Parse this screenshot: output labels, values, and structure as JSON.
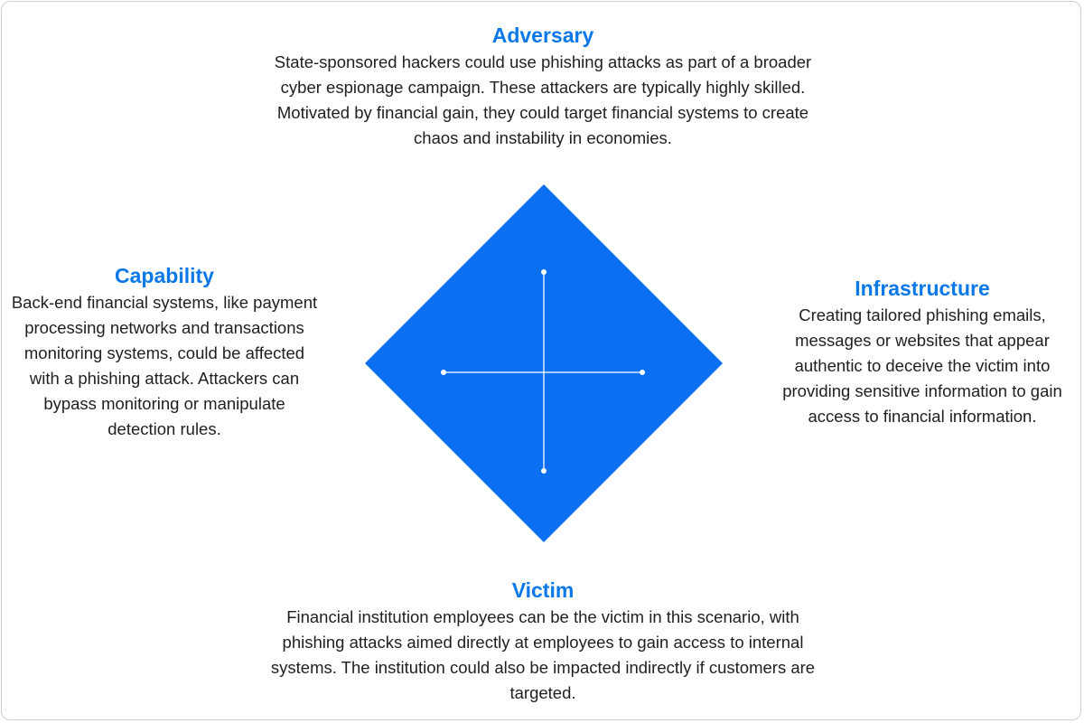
{
  "colors": {
    "accent": "#0a78e8",
    "diamond_fill": "#0a6ff0",
    "cross_line": "#ffffff",
    "text": "#1f1f1f",
    "border": "#cfcfcf"
  },
  "adversary": {
    "title": "Adversary",
    "text": "State-sponsored hackers could use phishing attacks as part of a broader cyber espionage campaign. These attackers are typically highly skilled. Motivated by financial gain, they could target financial systems to create chaos and instability in economies."
  },
  "capability": {
    "title": "Capability",
    "text": "Back-end financial systems, like payment processing networks and transactions monitoring systems, could be affected with a phishing attack. Attackers can bypass monitoring or manipulate detection rules."
  },
  "infrastructure": {
    "title": "Infrastructure",
    "text": "Creating tailored phishing emails, messages or websites that appear authentic to deceive the victim into providing sensitive information to gain access to financial information."
  },
  "victim": {
    "title": "Victim",
    "text": "Financial institution employees can be the victim in this scenario, with phishing attacks aimed directly at employees to gain access to internal systems. The institution could also be impacted indirectly if customers are targeted."
  }
}
